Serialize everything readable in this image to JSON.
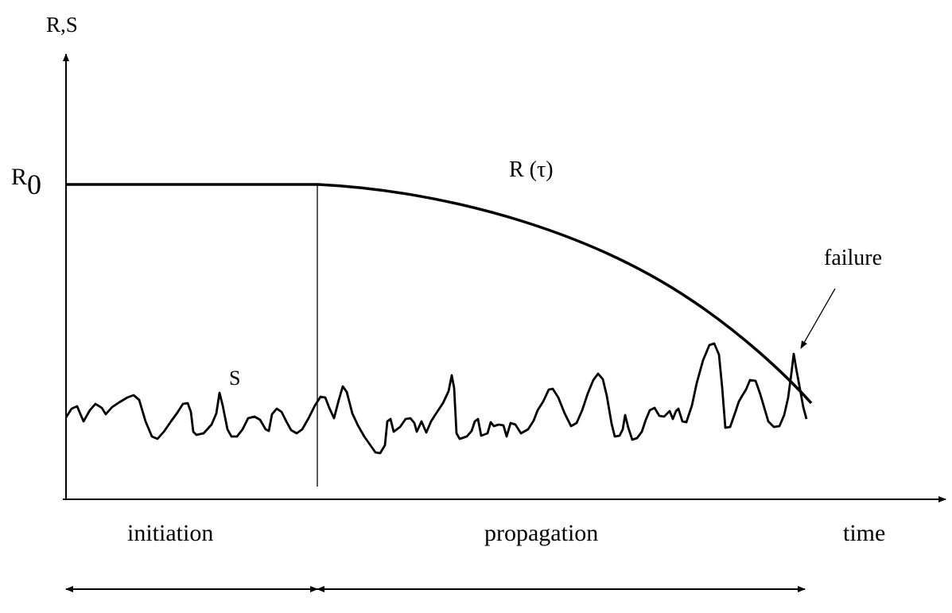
{
  "y_axis_label": "R,S",
  "r0_label": {
    "main": "R",
    "sub": "0"
  },
  "r_curve_label": "R (τ)",
  "s_label": "S",
  "failure_label": "failure",
  "x_axis_label": "time",
  "phase_initiation": "initiation",
  "phase_propagation": "propagation",
  "colors": {
    "ink": "#000000",
    "background": "#ffffff"
  }
}
